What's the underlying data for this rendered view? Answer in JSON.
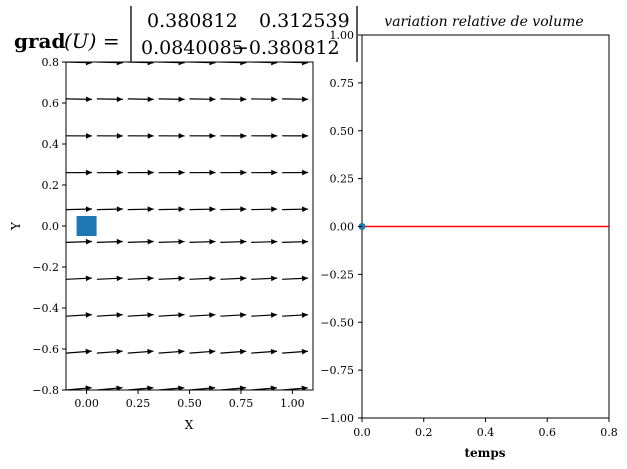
{
  "formula": {
    "lhs_operator": "grad",
    "lhs_argument": "(U) =",
    "matrix": [
      [
        "0.380812",
        "0.312539"
      ],
      [
        "0.0840085",
        "−0.380812"
      ]
    ]
  },
  "chart_data": [
    {
      "type": "quiver",
      "xlabel": "X",
      "ylabel": "Y",
      "xlim": [
        -0.1,
        1.1
      ],
      "ylim": [
        -0.8,
        0.8
      ],
      "xticks": [
        "0.00",
        "0.25",
        "0.50",
        "0.75",
        "1.00"
      ],
      "yticks": [
        "−0.8",
        "−0.6",
        "−0.4",
        "−0.2",
        "0.0",
        "0.2",
        "0.4",
        "0.6",
        "0.8"
      ],
      "marker": {
        "shape": "square",
        "x": 0.0,
        "y": 0.0,
        "color": "#1f77b4"
      },
      "arrow_color": "#000000",
      "grid": false
    },
    {
      "type": "line",
      "title": "variation relative de volume",
      "xlabel": "temps",
      "ylabel": "",
      "xlim": [
        0.0,
        0.8
      ],
      "ylim": [
        -1.0,
        1.0
      ],
      "xticks": [
        "0.0",
        "0.2",
        "0.4",
        "0.6",
        "0.8"
      ],
      "yticks": [
        "−1.00",
        "−0.75",
        "−0.50",
        "−0.25",
        "0.00",
        "0.25",
        "0.50",
        "0.75",
        "1.00"
      ],
      "series": [
        {
          "x": [
            0.0,
            0.8
          ],
          "y": [
            0.0,
            0.0
          ],
          "color": "#ff0000"
        }
      ],
      "point": {
        "x": 0.0,
        "y": 0.0,
        "color": "#1f77b4"
      },
      "grid": false
    }
  ]
}
